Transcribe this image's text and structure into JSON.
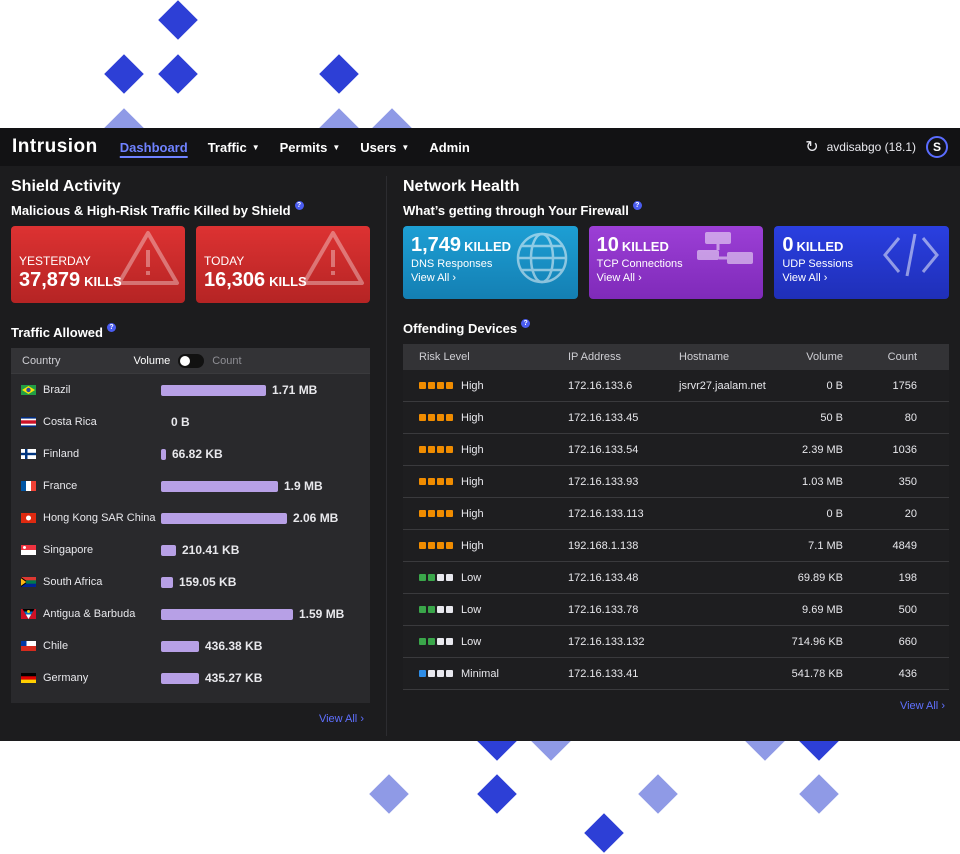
{
  "nav": {
    "logo": "Intrusion",
    "items": [
      {
        "label": "Dashboard"
      },
      {
        "label": "Traffic"
      },
      {
        "label": "Permits"
      },
      {
        "label": "Users"
      },
      {
        "label": "Admin"
      }
    ],
    "user": "avdisabgo (18.1)",
    "avatar_initial": "S"
  },
  "shield": {
    "title": "Shield Activity",
    "subtitle": "Malicious & High-Risk Traffic Killed by Shield",
    "help": "?",
    "cards": [
      {
        "label": "YESTERDAY",
        "value": "37,879",
        "unit": "KILLS"
      },
      {
        "label": "TODAY",
        "value": "16,306",
        "unit": "KILLS"
      }
    ]
  },
  "traffic": {
    "title": "Traffic Allowed",
    "help": "?",
    "col_country": "Country",
    "toggle_volume": "Volume",
    "toggle_count": "Count",
    "view_all": "View All",
    "rows": [
      {
        "country": "Brazil",
        "value": "1.71 MB",
        "ratio": 0.7,
        "flag": "br"
      },
      {
        "country": "Costa Rica",
        "value": "0 B",
        "ratio": 0.0,
        "flag": "cr"
      },
      {
        "country": "Finland",
        "value": "66.82 KB",
        "ratio": 0.03,
        "flag": "fi"
      },
      {
        "country": "France",
        "value": "1.9 MB",
        "ratio": 0.78,
        "flag": "fr"
      },
      {
        "country": "Hong Kong SAR China",
        "value": "2.06 MB",
        "ratio": 0.84,
        "flag": "hk"
      },
      {
        "country": "Singapore",
        "value": "210.41 KB",
        "ratio": 0.1,
        "flag": "sg"
      },
      {
        "country": "South Africa",
        "value": "159.05 KB",
        "ratio": 0.08,
        "flag": "za"
      },
      {
        "country": "Antigua & Barbuda",
        "value": "1.59 MB",
        "ratio": 0.88,
        "flag": "ag"
      },
      {
        "country": "Chile",
        "value": "436.38 KB",
        "ratio": 0.25,
        "flag": "cl"
      },
      {
        "country": "Germany",
        "value": "435.27 KB",
        "ratio": 0.25,
        "flag": "de"
      }
    ]
  },
  "network": {
    "title": "Network Health",
    "subtitle": "What’s getting through Your Firewall",
    "help": "?",
    "cards": [
      {
        "value": "1,749",
        "unit": "KILLED",
        "label": "DNS Responses",
        "view": "View All"
      },
      {
        "value": "10",
        "unit": "KILLED",
        "label": "TCP Connections",
        "view": "View All"
      },
      {
        "value": "0",
        "unit": "KILLED",
        "label": "UDP Sessions",
        "view": "View All"
      }
    ]
  },
  "offending": {
    "title": "Offending Devices",
    "help": "?",
    "view_all": "View All",
    "headers": {
      "risk": "Risk Level",
      "ip": "IP Address",
      "host": "Hostname",
      "volume": "Volume",
      "count": "Count"
    },
    "colors": {
      "high": "#f08c00",
      "low": "#3aa64a",
      "minimal": "#2d8ce6",
      "empty": "#e8e8ee"
    },
    "rows": [
      {
        "risk": "High",
        "level": 4,
        "kind": "high",
        "ip": "172.16.133.6",
        "host": "jsrvr27.jaalam.net",
        "volume": "0 B",
        "count": "1756"
      },
      {
        "risk": "High",
        "level": 4,
        "kind": "high",
        "ip": "172.16.133.45",
        "host": "",
        "volume": "50 B",
        "count": "80"
      },
      {
        "risk": "High",
        "level": 4,
        "kind": "high",
        "ip": "172.16.133.54",
        "host": "",
        "volume": "2.39 MB",
        "count": "1036"
      },
      {
        "risk": "High",
        "level": 4,
        "kind": "high",
        "ip": "172.16.133.93",
        "host": "",
        "volume": "1.03 MB",
        "count": "350"
      },
      {
        "risk": "High",
        "level": 4,
        "kind": "high",
        "ip": "172.16.133.113",
        "host": "",
        "volume": "0 B",
        "count": "20"
      },
      {
        "risk": "High",
        "level": 4,
        "kind": "high",
        "ip": "192.168.1.138",
        "host": "",
        "volume": "7.1 MB",
        "count": "4849"
      },
      {
        "risk": "Low",
        "level": 2,
        "kind": "low",
        "ip": "172.16.133.48",
        "host": "",
        "volume": "69.89 KB",
        "count": "198"
      },
      {
        "risk": "Low",
        "level": 2,
        "kind": "low",
        "ip": "172.16.133.78",
        "host": "",
        "volume": "9.69 MB",
        "count": "500"
      },
      {
        "risk": "Low",
        "level": 2,
        "kind": "low",
        "ip": "172.16.133.132",
        "host": "",
        "volume": "714.96 KB",
        "count": "660"
      },
      {
        "risk": "Minimal",
        "level": 1,
        "kind": "minimal",
        "ip": "172.16.133.41",
        "host": "",
        "volume": "541.78 KB",
        "count": "436"
      }
    ]
  }
}
